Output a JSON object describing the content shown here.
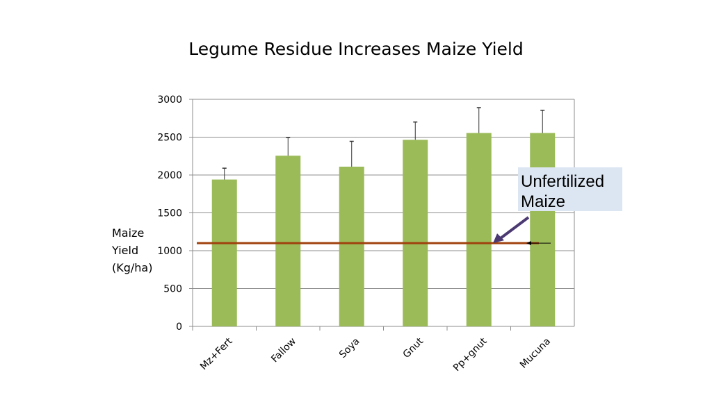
{
  "chart_data": {
    "type": "bar",
    "title": "Legume Residue Increases Maize Yield",
    "ylabel_lines": [
      "Maize",
      "Yield",
      "(Kg/ha)"
    ],
    "xlabel": "",
    "categories": [
      "Mz+Fert",
      "Fallow",
      "Soya",
      "Gnut",
      "Pp+gnut",
      "Mucuna"
    ],
    "values": [
      1940,
      2255,
      2110,
      2465,
      2555,
      2555
    ],
    "error_upper": [
      2090,
      2495,
      2445,
      2700,
      2890,
      2855
    ],
    "ylim": [
      0,
      3000
    ],
    "yticks": [
      0,
      500,
      1000,
      1500,
      2000,
      2500,
      3000
    ],
    "grid": true,
    "bar_color": "#9bbb59",
    "reference_line": {
      "value": 1100,
      "color": "#a0410d",
      "label": "Unfertilized Maize"
    },
    "annotation": {
      "line1": "Unfertilized",
      "line2": "Maize",
      "arrow_color": "#4b3a72"
    }
  }
}
